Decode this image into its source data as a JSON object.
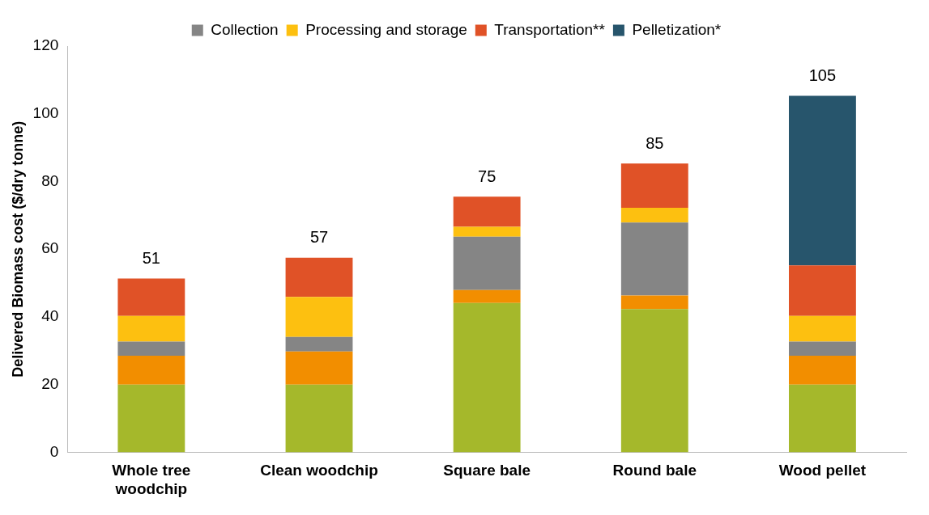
{
  "chart_data": {
    "type": "bar",
    "ylabel": "Delivered Biomass cost ($/dry tonne)",
    "categories": [
      "Whole tree woodchip",
      "Clean woodchip",
      "Square bale",
      "Round bale",
      "Wood pellet"
    ],
    "stacked": true,
    "ylim": [
      0,
      120
    ],
    "yticks": [
      0,
      20,
      40,
      60,
      80,
      100,
      120
    ],
    "legend": "top",
    "totals": [
      "51",
      "57",
      "75",
      "85",
      "105"
    ],
    "series": [
      {
        "color": "#a5b82b",
        "values": [
          20,
          20,
          44.1,
          42.3,
          20
        ]
      },
      {
        "color": "#f28e00",
        "values": [
          8.5,
          9.8,
          3.8,
          4,
          8.5
        ]
      },
      {
        "name": "Collection",
        "color": "#858585",
        "values": [
          4.2,
          4.3,
          15.8,
          21.6,
          4.2
        ]
      },
      {
        "name": "Processing and storage",
        "color": "#fdc010",
        "values": [
          7.6,
          11.8,
          2.9,
          4.3,
          7.6
        ]
      },
      {
        "name": "Transportation**",
        "color": "#e05227",
        "values": [
          11,
          11.6,
          8.9,
          13.1,
          14.9
        ]
      },
      {
        "name": "Pelletization*",
        "color": "#27556c",
        "values": [
          0,
          0,
          0,
          0,
          50.1
        ]
      }
    ]
  }
}
